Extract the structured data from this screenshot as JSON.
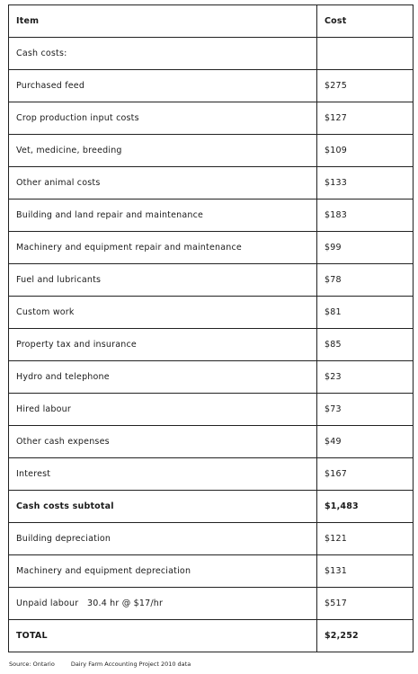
{
  "table": {
    "header": {
      "item": "Item",
      "cost": "Cost"
    },
    "rows": [
      {
        "item": "Cash costs:",
        "cost": ""
      },
      {
        "item": "Purchased feed",
        "cost": "$275"
      },
      {
        "item": "Crop production input costs",
        "cost": "$127"
      },
      {
        "item": "Vet, medicine, breeding",
        "cost": "$109"
      },
      {
        "item": "Other animal costs",
        "cost": "$133"
      },
      {
        "item": "Building and land repair and maintenance",
        "cost": "$183"
      },
      {
        "item": "Machinery and equipment repair and maintenance",
        "cost": "$99"
      },
      {
        "item": "Fuel and lubricants",
        "cost": "$78"
      },
      {
        "item": "Custom work",
        "cost": "$81"
      },
      {
        "item": "Property tax and insurance",
        "cost": "$85"
      },
      {
        "item": "Hydro and telephone",
        "cost": "$23"
      },
      {
        "item": "Hired labour",
        "cost": "$73"
      },
      {
        "item": "Other cash expenses",
        "cost": "$49"
      },
      {
        "item": "Interest",
        "cost": "$167"
      },
      {
        "item": "Cash costs subtotal",
        "cost": "$1,483"
      },
      {
        "item": "Building depreciation",
        "cost": "$121"
      },
      {
        "item": "Machinery and equipment depreciation",
        "cost": "$131"
      },
      {
        "item": "Unpaid labour   30.4 hr @ $17/hr",
        "cost": "$517"
      },
      {
        "item": "TOTAL",
        "cost": "$2,252"
      }
    ]
  },
  "source": {
    "label": "Source: Ontario",
    "text": "Dairy Farm Accounting Project 2010 data"
  }
}
